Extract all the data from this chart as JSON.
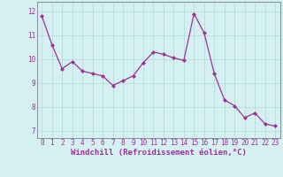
{
  "x": [
    0,
    1,
    2,
    3,
    4,
    5,
    6,
    7,
    8,
    9,
    10,
    11,
    12,
    13,
    14,
    15,
    16,
    17,
    18,
    19,
    20,
    21,
    22,
    23
  ],
  "y": [
    11.8,
    10.6,
    9.6,
    9.9,
    9.5,
    9.4,
    9.3,
    8.9,
    9.1,
    9.3,
    9.85,
    10.3,
    10.2,
    10.05,
    9.95,
    11.9,
    11.1,
    9.4,
    8.3,
    8.05,
    7.55,
    7.75,
    7.3,
    7.2
  ],
  "line_color": "#993399",
  "marker": "D",
  "markersize": 2.0,
  "linewidth": 0.9,
  "xlabel": "Windchill (Refroidissement éolien,°C)",
  "xlabel_fontsize": 6.5,
  "xlabel_color": "#993399",
  "xlabel_fontweight": "bold",
  "xtick_labels": [
    "0",
    "1",
    "2",
    "3",
    "4",
    "5",
    "6",
    "7",
    "8",
    "9",
    "10",
    "11",
    "12",
    "13",
    "14",
    "15",
    "16",
    "17",
    "18",
    "19",
    "20",
    "21",
    "22",
    "23"
  ],
  "ytick_labels": [
    "7",
    "8",
    "9",
    "10",
    "11",
    "12"
  ],
  "yticks": [
    7,
    8,
    9,
    10,
    11,
    12
  ],
  "ylim": [
    6.7,
    12.4
  ],
  "xlim": [
    -0.5,
    23.5
  ],
  "bg_color": "#d5f0f0",
  "grid_color": "#b0d8d8",
  "spine_color": "#888899",
  "tick_color": "#993399",
  "tick_fontsize": 5.5
}
